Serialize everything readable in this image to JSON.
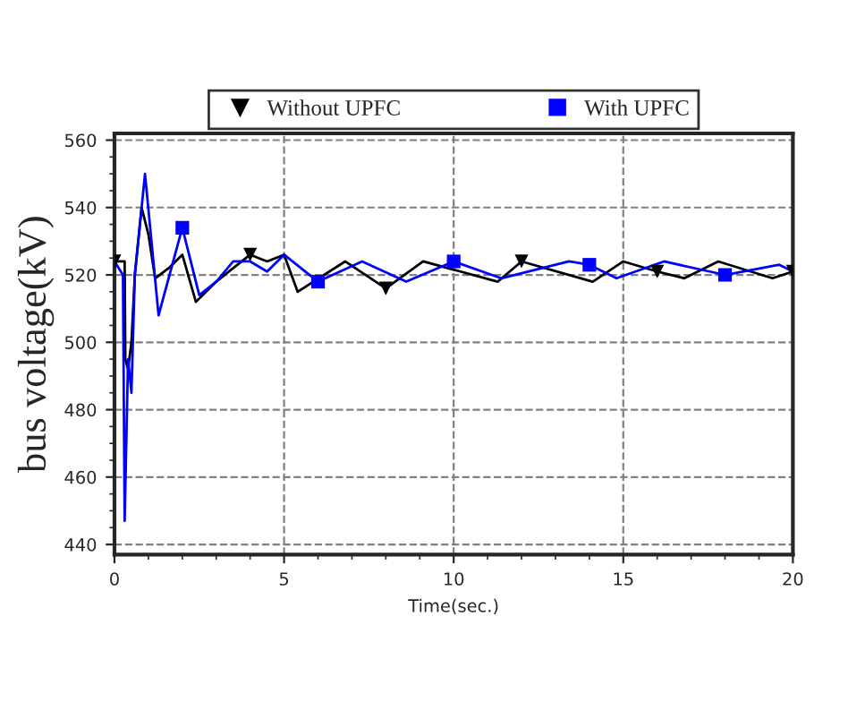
{
  "chart_data": {
    "type": "line",
    "xlabel": "Time(sec.)",
    "ylabel": "bus voltage(kV)",
    "xlim": [
      0,
      20
    ],
    "xticks": [
      0,
      5,
      10,
      15,
      20
    ],
    "ylim": [
      437,
      562
    ],
    "yticks": [
      440,
      460,
      480,
      500,
      520,
      540,
      560
    ],
    "grid": true,
    "legend": "top",
    "line_style": "solid",
    "series": [
      {
        "color": "#000000",
        "x": [
          0,
          0.3,
          0.32,
          0.4,
          0.5,
          0.6,
          0.8,
          1.0,
          1.2,
          1.6,
          2.0,
          2.4,
          3.0,
          4.0,
          4.5,
          5.0,
          5.4,
          6.8,
          8.0,
          9.1,
          11.3,
          12.0,
          14.1,
          15.0,
          16.0,
          16.8,
          17.8,
          19.4,
          20.0
        ],
        "values": [
          524,
          524,
          495,
          492,
          500,
          520,
          540,
          532,
          519,
          522,
          526,
          512,
          518,
          526,
          524,
          526,
          515,
          524,
          516,
          524,
          518,
          524,
          518,
          524,
          521,
          519,
          524,
          519,
          521
        ]
      },
      {
        "color": "#0000ff",
        "x": [
          0,
          0.25,
          0.3,
          0.4,
          0.5,
          0.6,
          0.9,
          1.3,
          2.0,
          2.5,
          3.0,
          3.5,
          4.0,
          4.5,
          5.0,
          6.0,
          7.3,
          8.6,
          10.0,
          11.4,
          13.4,
          14.0,
          14.8,
          16.2,
          18.0,
          19.6,
          20.0
        ],
        "values": [
          524,
          520,
          447,
          495,
          485,
          520,
          550,
          508,
          534,
          514,
          518,
          524,
          524,
          521,
          526,
          518,
          524,
          518,
          524,
          519,
          524,
          523,
          519,
          524,
          520,
          523,
          521
        ]
      },
      {
        "name": "Without UPFC",
        "type": "scatter",
        "color": "#000000",
        "marker": "triangle",
        "x": [
          0,
          4,
          8,
          12,
          16,
          20
        ],
        "values": [
          524,
          526,
          516,
          524,
          521,
          521
        ]
      },
      {
        "name": "With UPFC",
        "type": "scatter",
        "color": "#0000ff",
        "marker": "square",
        "x": [
          2,
          6,
          10,
          14,
          18
        ],
        "values": [
          534,
          518,
          524,
          523,
          520
        ]
      }
    ]
  }
}
